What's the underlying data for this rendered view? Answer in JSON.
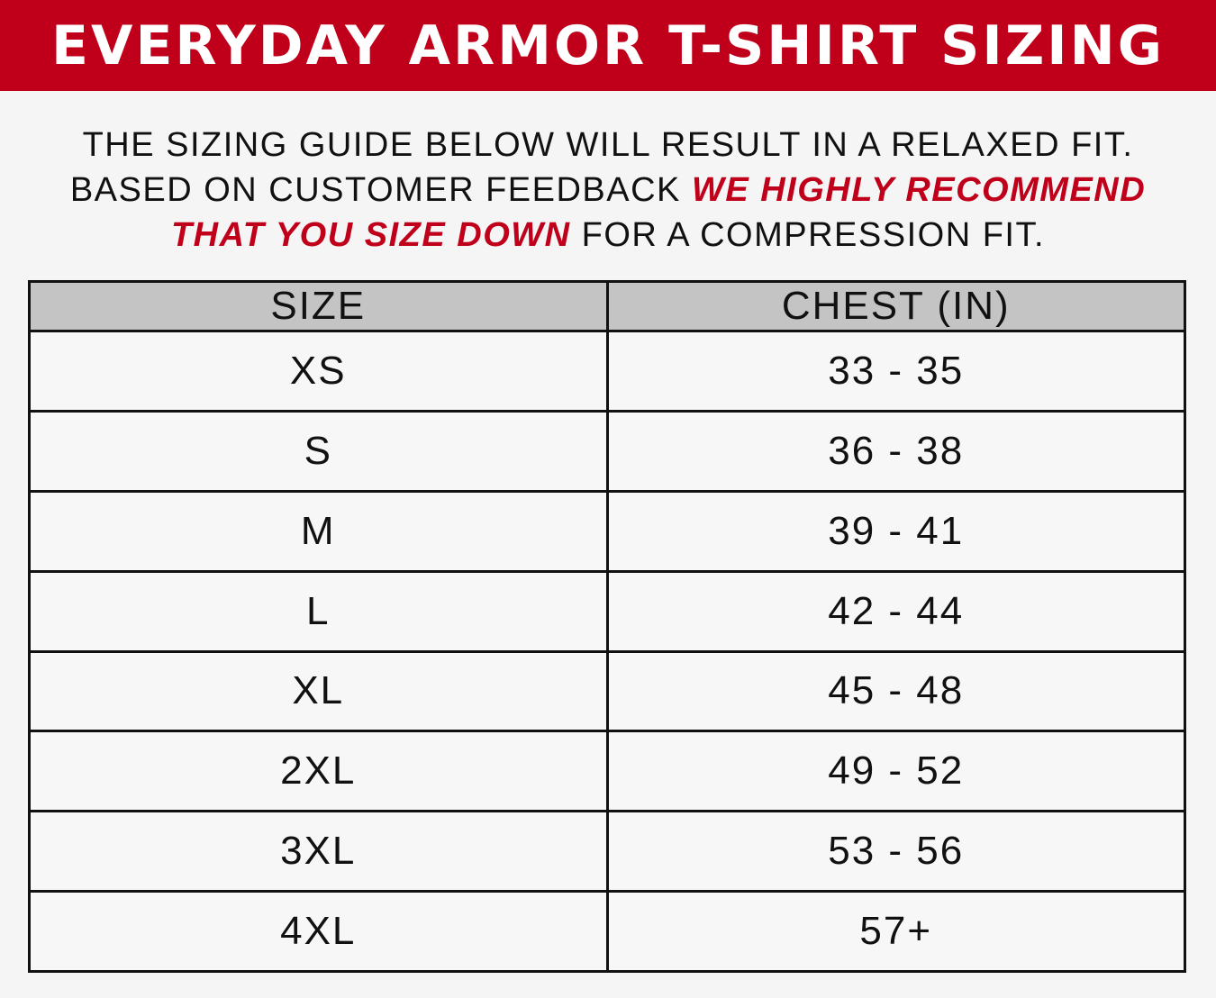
{
  "title": "EVERYDAY ARMOR T-SHIRT SIZING",
  "intro": {
    "line1": "THE SIZING GUIDE BELOW WILL RESULT IN A RELAXED FIT.",
    "line2_plain": "BASED ON CUSTOMER FEEDBACK ",
    "line2_emphasis": "WE HIGHLY RECOMMEND",
    "line3_emphasis": "THAT YOU SIZE DOWN",
    "line3_plain": " FOR A COMPRESSION FIT."
  },
  "colors": {
    "accent": "#c0001a",
    "header_bg": "#c4c4c4",
    "background": "#f5f5f5"
  },
  "table": {
    "headers": [
      "SIZE",
      "CHEST (IN)"
    ],
    "rows": [
      [
        "XS",
        "33 - 35"
      ],
      [
        "S",
        "36 - 38"
      ],
      [
        "M",
        "39 - 41"
      ],
      [
        "L",
        "42 - 44"
      ],
      [
        "XL",
        "45 - 48"
      ],
      [
        "2XL",
        "49 - 52"
      ],
      [
        "3XL",
        "53 - 56"
      ],
      [
        "4XL",
        "57+"
      ]
    ]
  }
}
